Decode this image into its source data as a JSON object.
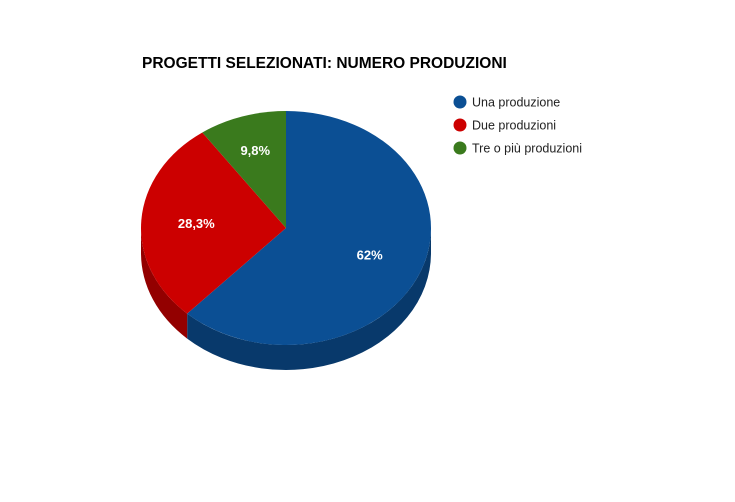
{
  "chart_data": {
    "type": "pie",
    "style": "3d",
    "title": "PROGETTI SELEZIONATI: NUMERO PRODUZIONI",
    "legend_position": "right",
    "slices": [
      {
        "name": "Una produzione",
        "value": 62,
        "label": "62%",
        "color": "#0b4f94"
      },
      {
        "name": "Due produzioni",
        "value": 28.3,
        "label": "28,3%",
        "color": "#cc0000"
      },
      {
        "name": "Tre o più produzioni",
        "value": 9.8,
        "label": "9,8%",
        "color": "#3a7a1d"
      }
    ]
  }
}
